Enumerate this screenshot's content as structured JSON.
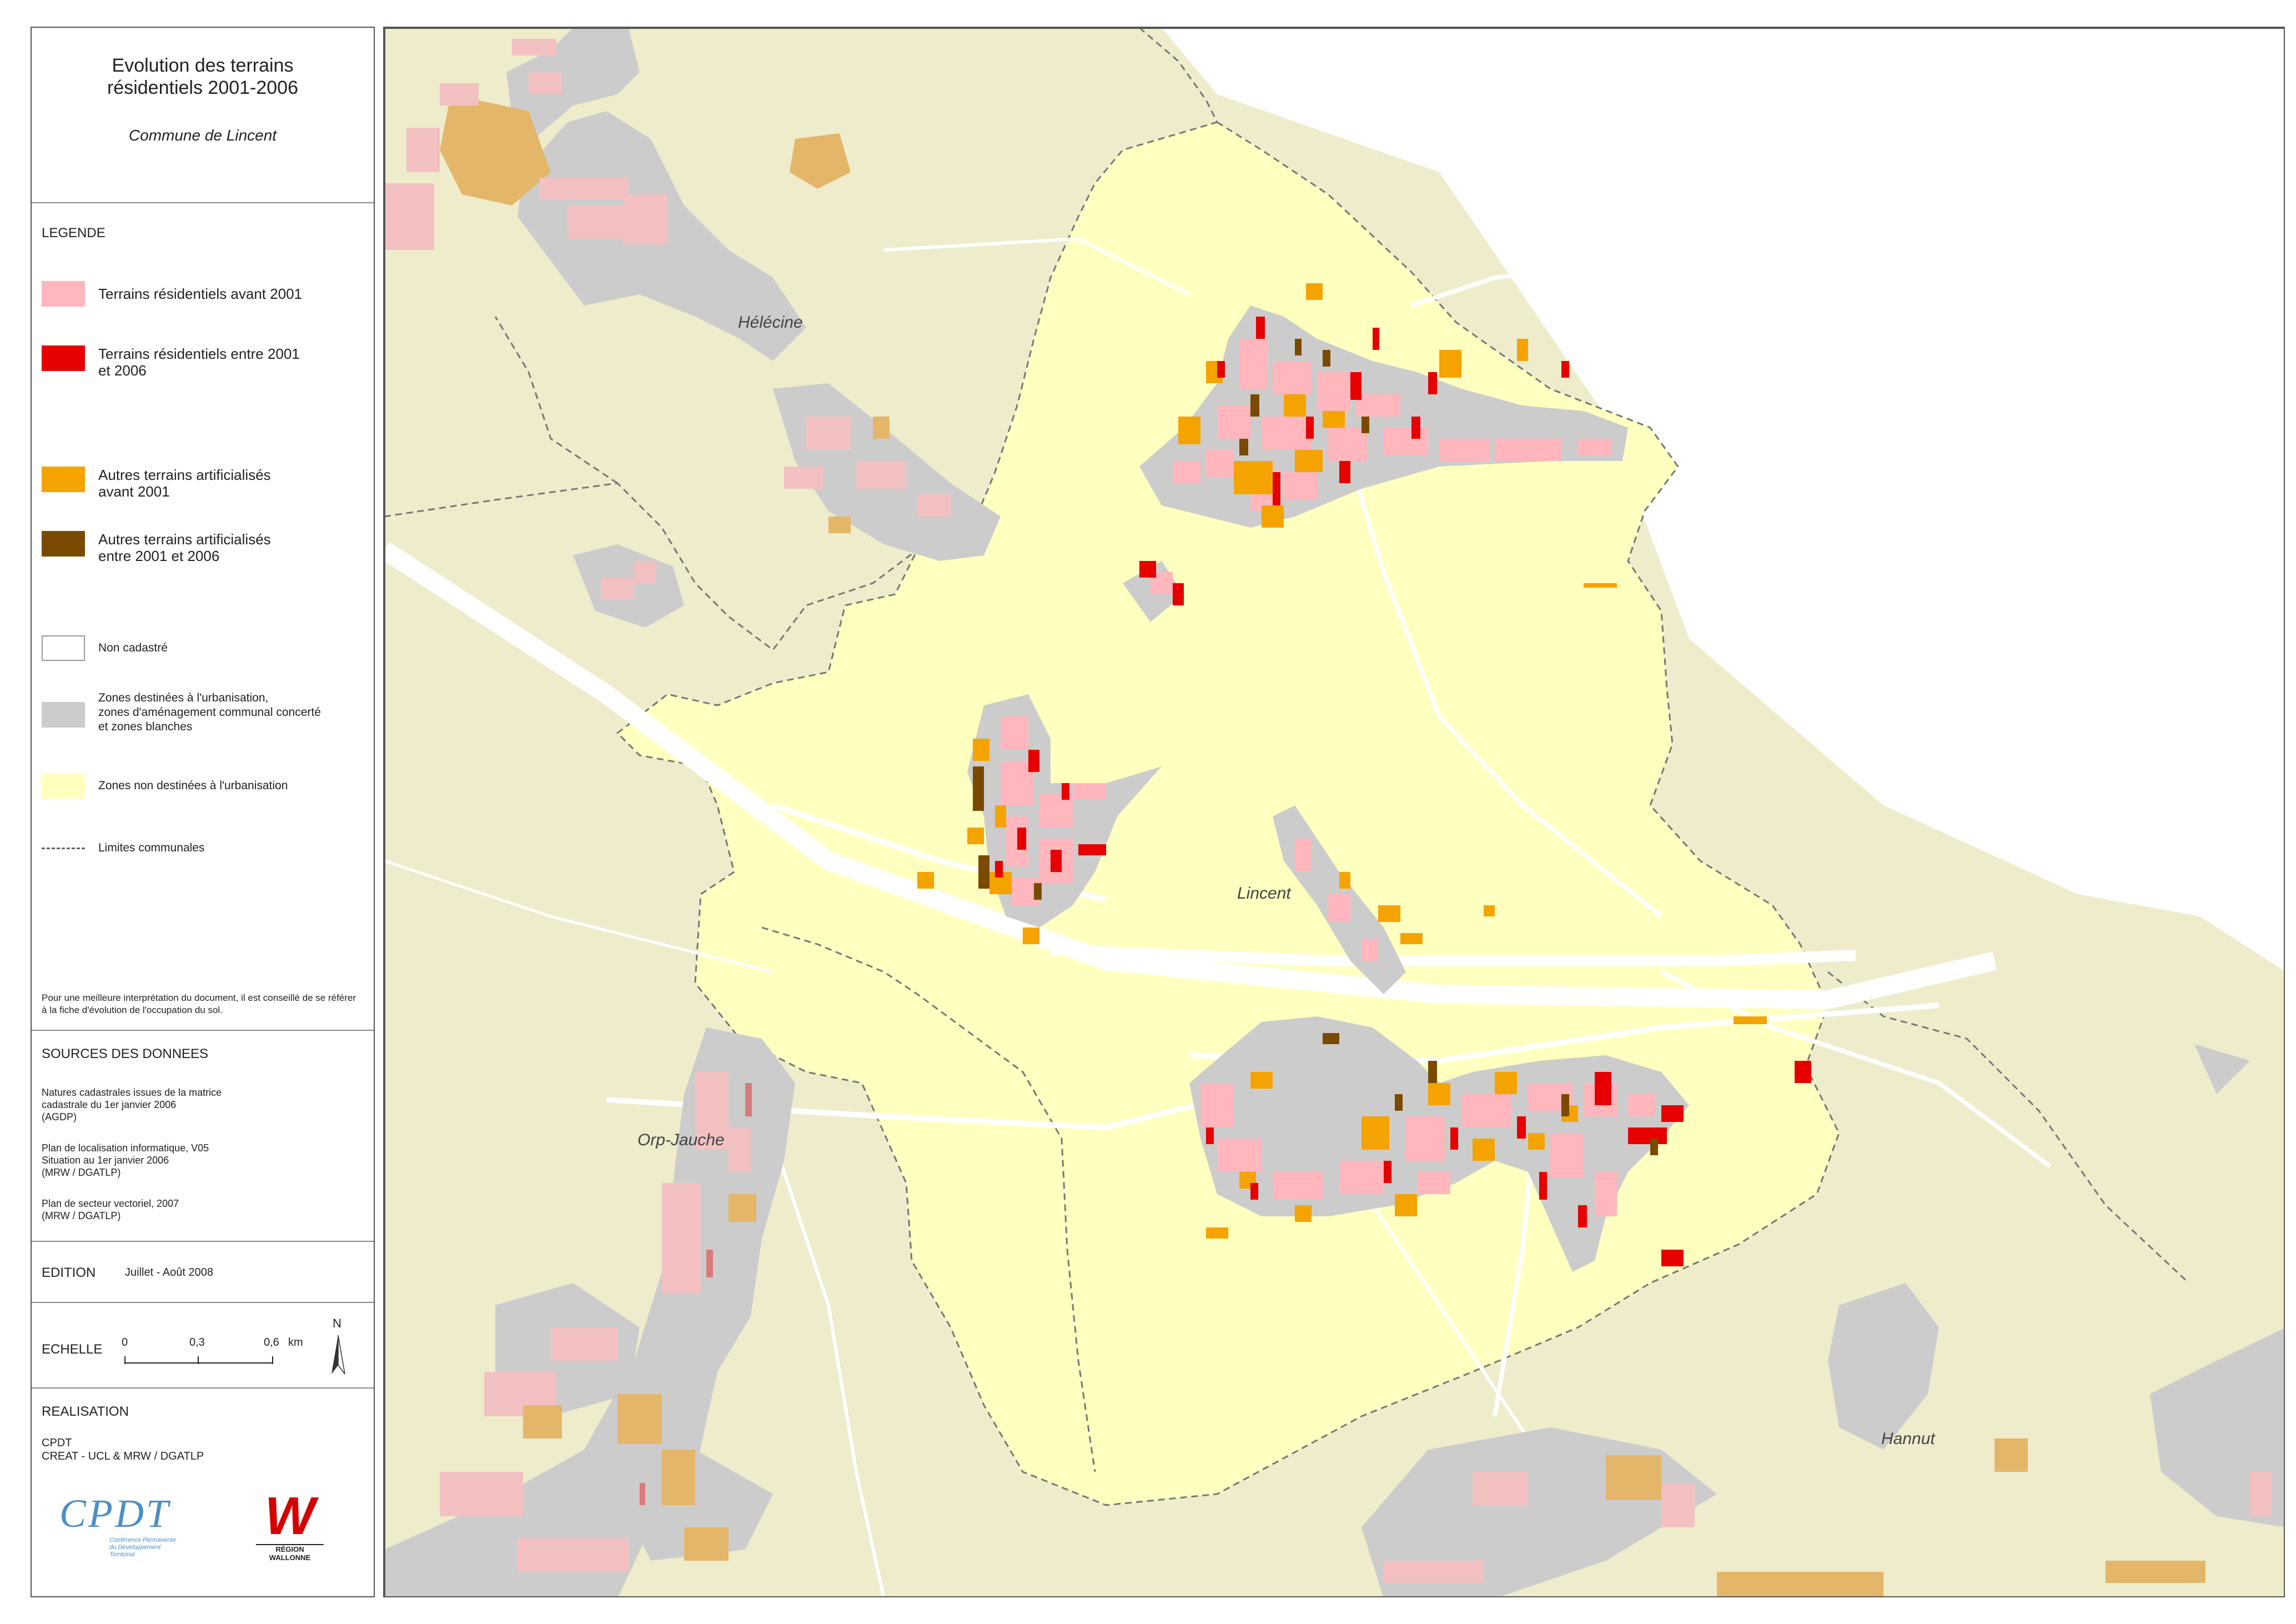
{
  "title": {
    "main": "Evolution des terrains\nrésidentiels 2001-2006",
    "commune": "Commune de Lincent"
  },
  "legend": {
    "heading": "LEGENDE",
    "items": [
      {
        "label": "Terrains résidentiels avant 2001",
        "color": "#ffb6bc"
      },
      {
        "label": "Terrains résidentiels entre 2001\net 2006",
        "color": "#e60000"
      },
      {
        "label": "Autres terrains artificialisés\navant 2001",
        "color": "#f5a300"
      },
      {
        "label": "Autres terrains artificialisés\nentre 2001 et 2006",
        "color": "#7a4a00"
      },
      {
        "label": "Non cadastré",
        "color": "#ffffff"
      },
      {
        "label": "Zones destinées à l'urbanisation,\nzones d'aménagement communal concerté\net zones blanches",
        "color": "#cccccc"
      },
      {
        "label": "Zones non destinées à l'urbanisation",
        "color": "#ffffc0"
      },
      {
        "label": "Limites communales",
        "icon": "dashed-line-icon"
      }
    ],
    "note": "Pour une meilleure interprétation du document, il est conseillé de se référer à la fiche d'évolution de l'occupation du sol."
  },
  "sources": {
    "heading": "SOURCES DES DONNEES",
    "items": [
      "Natures cadastrales issues de la matrice\ncadastrale du 1er janvier 2006\n(AGDP)",
      "Plan de localisation informatique, V05\nSituation au 1er janvier 2006\n(MRW / DGATLP)",
      "Plan de secteur vectoriel, 2007\n(MRW / DGATLP)"
    ]
  },
  "edition": {
    "label": "EDITION",
    "value": "Juillet - Août 2008"
  },
  "scale": {
    "label": "ECHELLE",
    "ticks": [
      "0",
      "0,3",
      "0,6"
    ],
    "unit": "km",
    "north": "N"
  },
  "realisation": {
    "heading": "REALISATION",
    "lines": "CPDT\nCREAT - UCL & MRW / DGATLP",
    "logo1": "CPDT",
    "logo1_sub": "Conférence Permanente\ndu Développement\nTerritorial",
    "logo2": "W",
    "logo2_sub": "RÉGION WALLONNE"
  },
  "places": [
    "Hélécine",
    "Lincent",
    "Orp-Jauche",
    "Hannut"
  ],
  "colors": {
    "outside": "#eeeccb",
    "non_urban": "#ffffc0",
    "urban_zone": "#cccccc",
    "res_old": "#ffb6bc",
    "res_new": "#e60000",
    "art_old": "#f5a300",
    "art_new": "#7a4a00",
    "outside_res": "#f3c1c1",
    "outside_art": "#e3b66a"
  }
}
